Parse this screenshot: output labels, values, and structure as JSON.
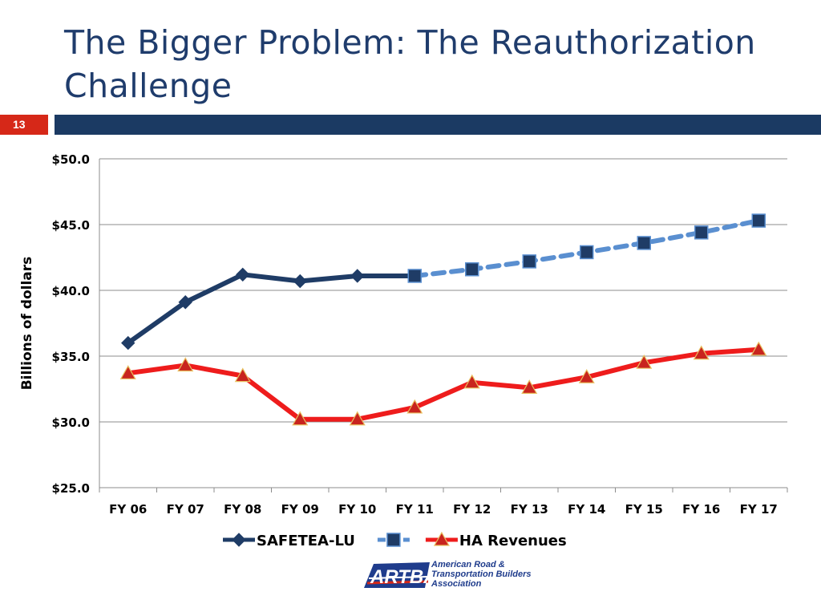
{
  "slide": {
    "title": "The Bigger Problem: The Reauthorization Challenge",
    "number": "13",
    "colors": {
      "title": "#1f3c6c",
      "bar": "#1b3a63",
      "number_bg": "#d62818"
    }
  },
  "logo": {
    "mark": "ARTBA",
    "text_lines": [
      "American Road &",
      "Transportation Builders",
      "Association"
    ]
  },
  "chart_data": {
    "type": "line",
    "title": "",
    "xlabel": "",
    "ylabel": "Billions of dollars",
    "categories": [
      "FY 06",
      "FY 07",
      "FY 08",
      "FY 09",
      "FY 10",
      "FY 11",
      "FY 12",
      "FY 13",
      "FY 14",
      "FY 15",
      "FY 16",
      "FY 17"
    ],
    "yticks": [
      "$25.0",
      "$30.0",
      "$35.0",
      "$40.0",
      "$45.0",
      "$50.0"
    ],
    "ylim": [
      25,
      50
    ],
    "grid": true,
    "legend_position": "bottom",
    "series": [
      {
        "name": "SAFETEA-LU",
        "values": [
          36.0,
          39.1,
          41.2,
          40.7,
          41.1,
          41.1,
          null,
          null,
          null,
          null,
          null,
          null
        ],
        "color": "#1f3c66",
        "marker": "diamond",
        "dash": "solid"
      },
      {
        "name": "",
        "values": [
          null,
          null,
          null,
          null,
          null,
          41.1,
          41.6,
          42.2,
          42.9,
          43.6,
          44.4,
          45.3
        ],
        "color": "#5a8fd0",
        "marker": "square",
        "marker_color": "#1f3c66",
        "dash": "dashed"
      },
      {
        "name": "HA Revenues",
        "values": [
          33.7,
          34.3,
          33.5,
          30.2,
          30.2,
          31.1,
          33.0,
          32.6,
          33.4,
          34.5,
          35.2,
          35.5
        ],
        "color": "#ee1c1c",
        "marker": "triangle",
        "marker_color": "#c8241e",
        "dash": "solid"
      }
    ]
  }
}
